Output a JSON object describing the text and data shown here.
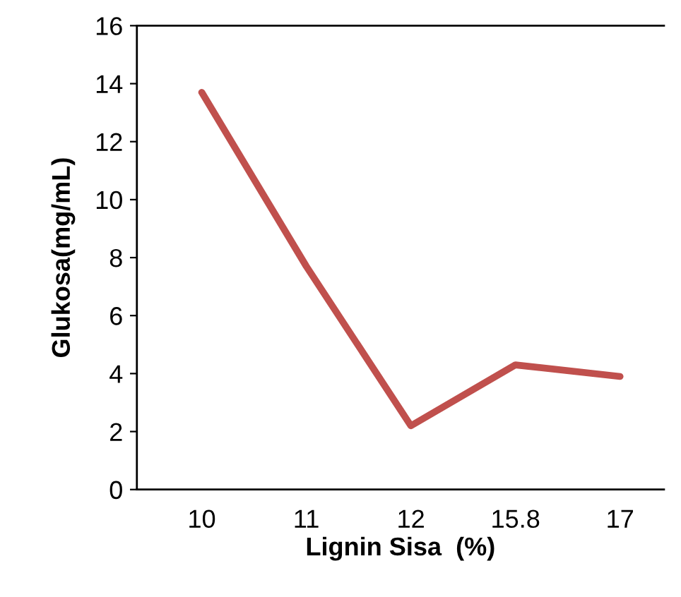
{
  "chart_data": {
    "type": "line",
    "xlabel": "Lignin Sisa  (%)",
    "ylabel": "Glukosa(mg/mL)",
    "categories": [
      "10",
      "11",
      "12",
      "15.8",
      "17"
    ],
    "series": [
      {
        "color": "#c0504d",
        "values": [
          13.7,
          7.7,
          2.2,
          4.3,
          3.9
        ]
      }
    ],
    "ylim": [
      0,
      16
    ],
    "yticks": [
      0,
      2,
      4,
      6,
      8,
      10,
      12,
      14,
      16
    ],
    "grid": false,
    "legend": false,
    "marker": "none",
    "line_style": "solid"
  }
}
